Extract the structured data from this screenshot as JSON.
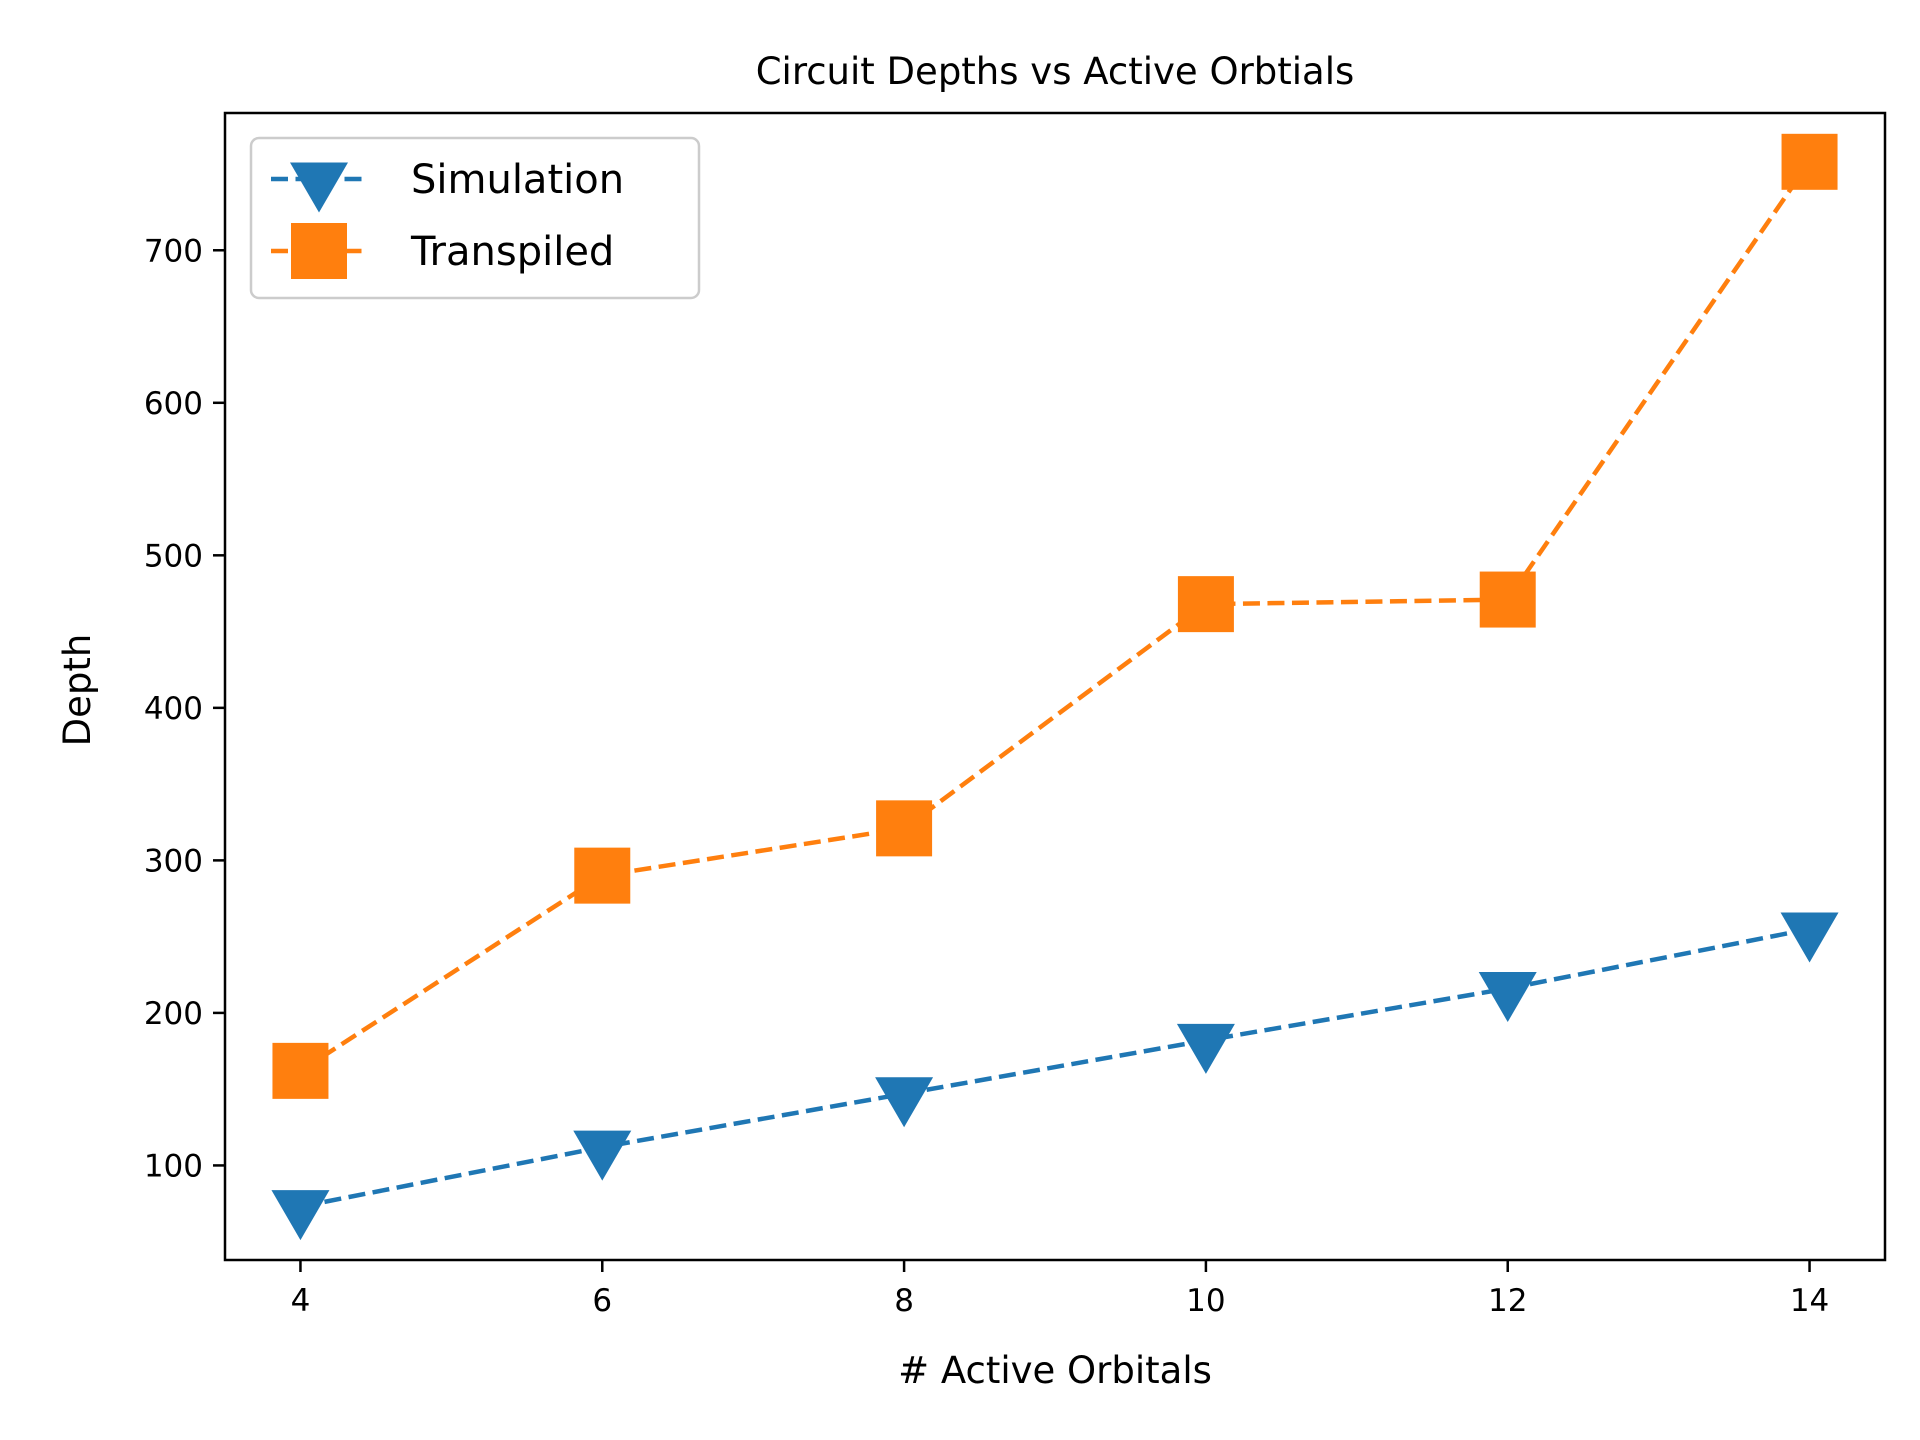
{
  "chart_data": {
    "type": "line",
    "title": "Circuit Depths vs Active Orbtials",
    "xlabel": "# Active Orbitals",
    "ylabel": "Depth",
    "x": [
      4,
      6,
      8,
      10,
      12,
      14
    ],
    "xlim": [
      3.5,
      14.5
    ],
    "ylim": [
      38,
      790
    ],
    "xticks": [
      4,
      6,
      8,
      10,
      12,
      14
    ],
    "yticks": [
      100,
      200,
      300,
      400,
      500,
      600,
      700
    ],
    "grid": false,
    "legend_position": "top-left",
    "series": [
      {
        "name": "Simulation",
        "values": [
          73,
          112,
          147,
          182,
          216,
          255
        ],
        "color": "#1f77b4",
        "marker": "triangle-down",
        "linestyle": "dashed"
      },
      {
        "name": "Transpiled",
        "values": [
          162,
          290,
          321,
          468,
          471,
          758
        ],
        "color": "#ff7f0e",
        "marker": "square",
        "linestyle": "dashed"
      }
    ]
  }
}
